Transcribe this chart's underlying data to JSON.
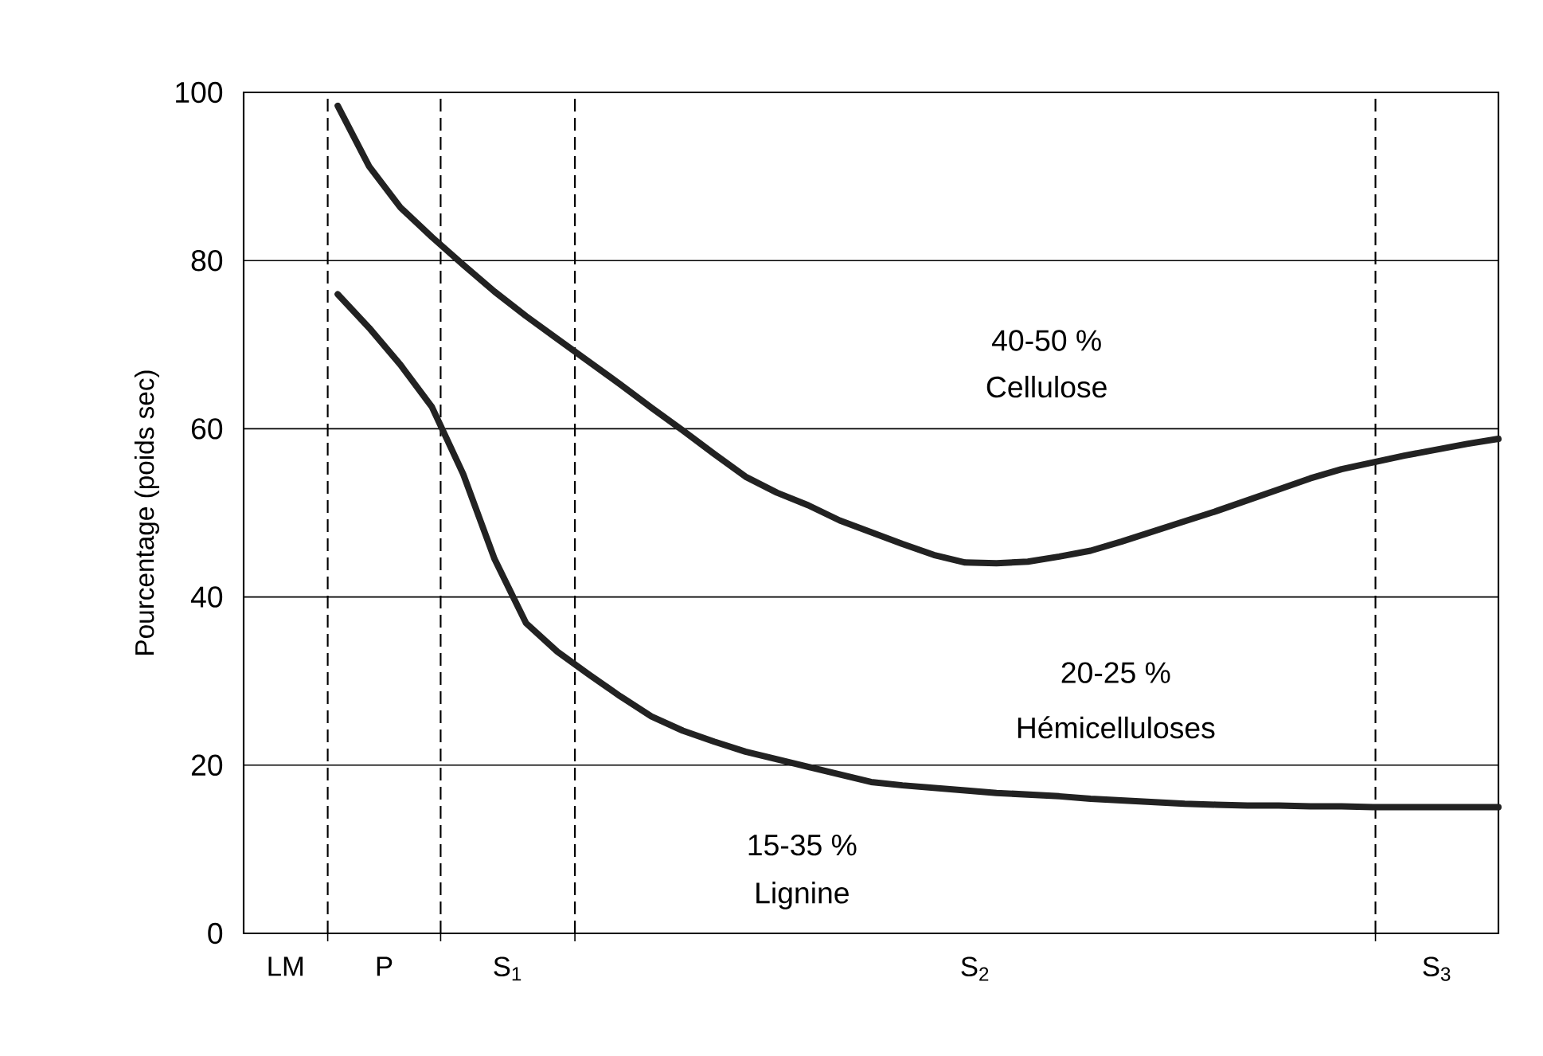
{
  "chart_data": {
    "type": "line",
    "ylabel": "Pourcentage (poids sec)",
    "categories": [
      null,
      null,
      null,
      null,
      null,
      null,
      null,
      null,
      null,
      null,
      null,
      null,
      null,
      null,
      null,
      null,
      null,
      null,
      null,
      null,
      null,
      null,
      null,
      null,
      null,
      null,
      null,
      null,
      null,
      null,
      null,
      null,
      null,
      null,
      null,
      null,
      null,
      null,
      null,
      null,
      null
    ],
    "ylim": [
      0,
      100
    ],
    "yticks": [
      0,
      20,
      40,
      60,
      80,
      100
    ],
    "tick_labels": "y",
    "grid": "y",
    "marker": "none",
    "line_style": "solid",
    "series": [
      {
        "color": "#222222",
        "values": [
          null,
          null,
          null,
          98.4,
          91.2,
          86.3,
          82.8,
          79.5,
          76.3,
          73.4,
          70.7,
          68.0,
          65.3,
          62.5,
          59.8,
          57.0,
          54.3,
          52.4,
          50.9,
          49.1,
          47.7,
          46.3,
          45.0,
          44.1,
          44.0,
          44.2,
          44.8,
          45.5,
          46.6,
          47.8,
          49.0,
          50.2,
          51.5,
          52.8,
          54.1,
          55.2,
          56.0,
          56.8,
          57.5,
          58.2,
          58.8
        ]
      },
      {
        "color": "#222222",
        "values": [
          null,
          null,
          null,
          76.0,
          72.0,
          67.6,
          62.6,
          54.6,
          44.5,
          36.9,
          33.5,
          30.8,
          28.2,
          25.8,
          24.1,
          22.8,
          21.6,
          20.7,
          19.8,
          18.9,
          18.0,
          17.6,
          17.3,
          17.0,
          16.7,
          16.5,
          16.3,
          16.0,
          15.8,
          15.6,
          15.4,
          15.3,
          15.2,
          15.2,
          15.1,
          15.1,
          15.0,
          15.0,
          15.0,
          15.0,
          15.0
        ]
      }
    ],
    "annotations": [
      "LM",
      "P",
      "S$_{1}$",
      "S$_{2}$",
      "S$_{3}$",
      "40-50 %",
      "Cellulose",
      "20-25 %",
      "Hémicelluloses",
      "15-35 %",
      "Lignine"
    ]
  }
}
